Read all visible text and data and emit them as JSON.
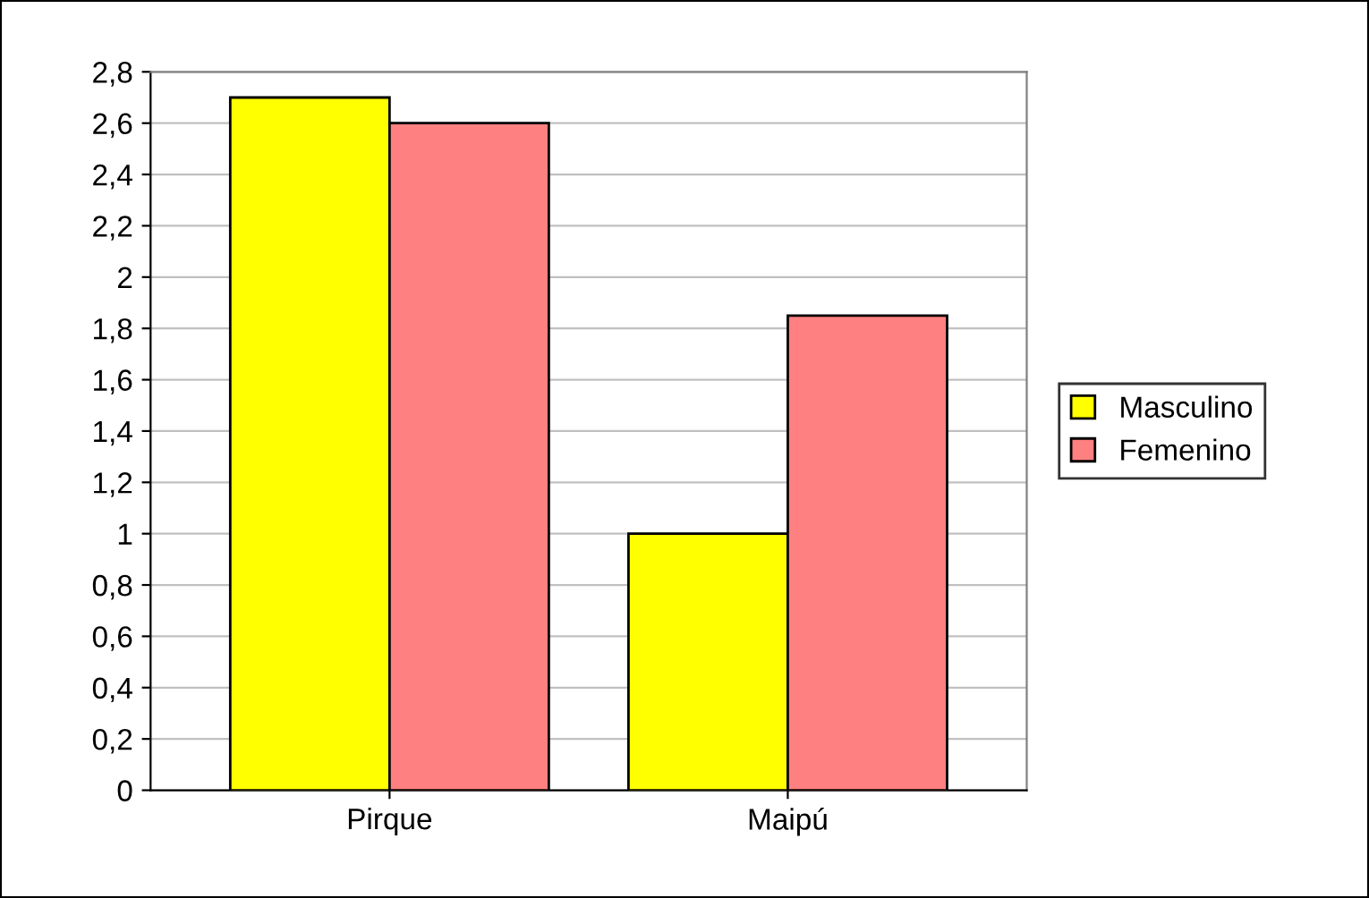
{
  "chart_data": {
    "type": "bar",
    "categories": [
      "Pirque",
      "Maipú"
    ],
    "series": [
      {
        "name": "Masculino",
        "color": "#ffff00",
        "values": [
          2.7,
          1.0
        ]
      },
      {
        "name": "Femenino",
        "color": "#ff8080",
        "values": [
          2.6,
          1.85
        ]
      }
    ],
    "ylim": [
      0,
      2.8
    ],
    "yticks": [
      0,
      {
        "value": 0.2,
        "label": "0,2"
      },
      {
        "value": 0.4,
        "label": "0,4"
      },
      {
        "value": 0.6,
        "label": "0,6"
      },
      {
        "value": 0.8,
        "label": "0,8"
      },
      1,
      {
        "value": 1.2,
        "label": "1,2"
      },
      {
        "value": 1.4,
        "label": "1,4"
      },
      {
        "value": 1.6,
        "label": "1,6"
      },
      {
        "value": 1.8,
        "label": "1,8"
      },
      2,
      {
        "value": 2.2,
        "label": "2,2"
      },
      {
        "value": 2.4,
        "label": "2,4"
      },
      {
        "value": 2.6,
        "label": "2,6"
      },
      {
        "value": 2.8,
        "label": "2,8"
      }
    ],
    "grid": "y",
    "legend": "right"
  }
}
